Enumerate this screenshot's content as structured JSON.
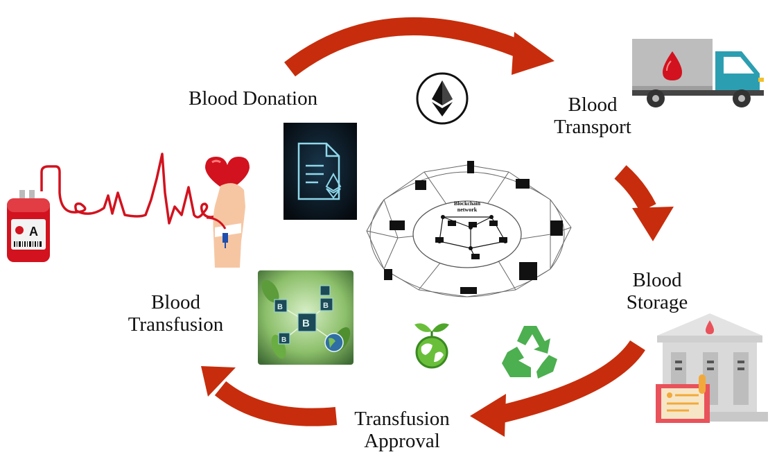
{
  "labels": {
    "blood_donation": "Blood Donation",
    "blood_transport_1": "Blood",
    "blood_transport_2": "Transport",
    "blood_storage_1": "Blood",
    "blood_storage_2": "Storage",
    "transfusion_approval_1": "Transfusion",
    "transfusion_approval_2": "Approval",
    "blood_transfusion_1": "Blood",
    "blood_transfusion_2": "Transfusion"
  },
  "network": {
    "title_1": "Blockchain",
    "title_2": "network"
  },
  "blood_bag": {
    "blood_type": "A"
  },
  "colors": {
    "arrow": "#c72d0c",
    "blood": "#d2121e",
    "truck_body": "#b9b9b9",
    "truck_cab": "#2b9fb1",
    "building": "#d9d9d9",
    "document": "#e9525a",
    "recycle": "#4caf50",
    "dark_panel": "#0d1a26"
  },
  "icons": [
    "ethereum-logo-icon",
    "smart-contract-icon",
    "blockchain-cubes-icon",
    "earth-leaf-icon",
    "recycle-icon",
    "blood-bag-icon",
    "heartbeat-line-icon",
    "heart-hand-icon",
    "blood-truck-icon",
    "blood-bank-icon"
  ]
}
